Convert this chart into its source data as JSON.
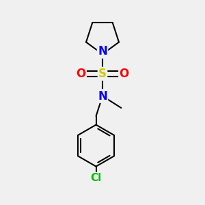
{
  "background_color": "#f0f0f0",
  "line_color": "#000000",
  "S_color": "#cccc00",
  "N_color": "#0000ff",
  "O_color": "#ff0000",
  "Cl_color": "#00bb00",
  "lw": 1.5,
  "figsize": [
    3.0,
    3.0
  ],
  "dpi": 100,
  "xlim": [
    -1.4,
    1.4
  ],
  "ylim": [
    -3.6,
    2.0
  ]
}
